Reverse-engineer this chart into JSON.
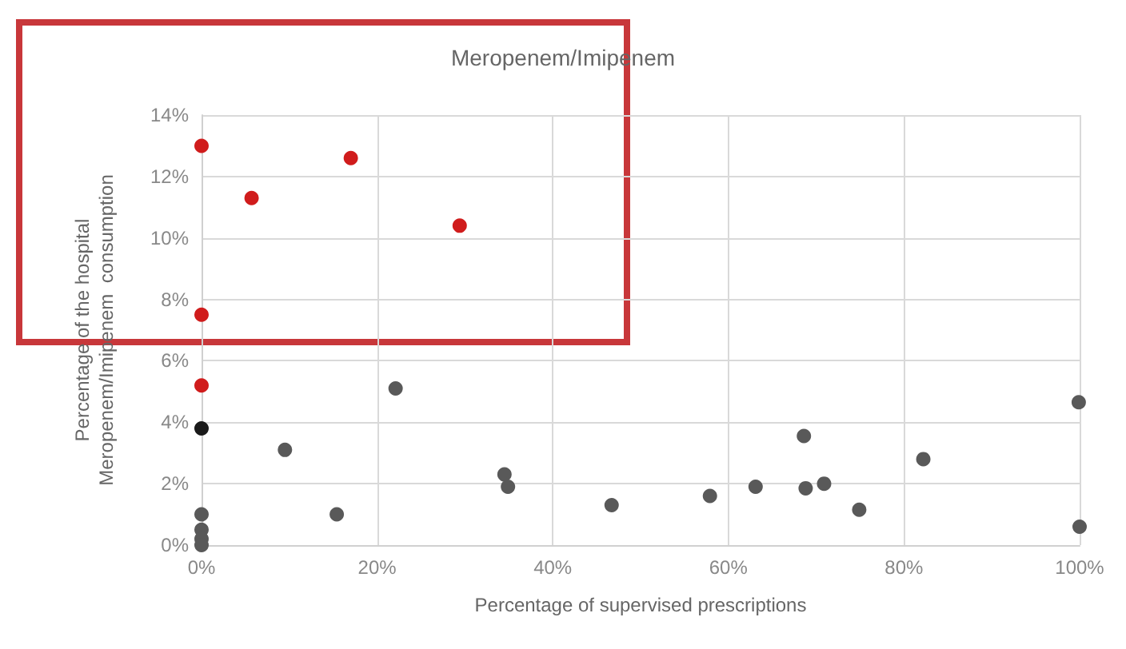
{
  "chart_data": {
    "type": "scatter",
    "title": "Meropenem/Imipenem",
    "xlabel": "Percentage of supervised prescriptions",
    "ylabel": "Percentage of the hospital\nMeropenem/Imipenem  consumption",
    "series": [
      {
        "color": "#d01c1c",
        "x": [
          0,
          0,
          5.7,
          17,
          29.4,
          0
        ],
        "values": [
          13,
          7.5,
          11.3,
          12.6,
          10.4,
          5.2
        ]
      },
      {
        "color": "#1a1a1a",
        "x": [
          0
        ],
        "values": [
          3.8
        ]
      },
      {
        "color": "#595959",
        "x": [
          0,
          0,
          0,
          0,
          9.5,
          15.4,
          22.1,
          34.5,
          34.9,
          46.7,
          57.9,
          63.1,
          68.6,
          68.8,
          70.9,
          74.9,
          82.2,
          99.9,
          100
        ],
        "values": [
          1,
          0.5,
          0.2,
          0,
          3.1,
          1,
          5.1,
          2.3,
          1.9,
          1.3,
          1.6,
          1.9,
          3.55,
          1.85,
          2,
          1.15,
          2.8,
          4.65,
          0.6
        ]
      }
    ],
    "xlim": [
      0,
      100
    ],
    "xticks": [
      {
        "value": 0,
        "label": "0%"
      },
      {
        "value": 20,
        "label": "20%"
      },
      {
        "value": 40,
        "label": "40%"
      },
      {
        "value": 60,
        "label": "60%"
      },
      {
        "value": 80,
        "label": "80%"
      },
      {
        "value": 100,
        "label": "100%"
      }
    ],
    "ylim": [
      0,
      14
    ],
    "yticks": [
      {
        "value": 0,
        "label": "0%"
      },
      {
        "value": 2,
        "label": "2%"
      },
      {
        "value": 4,
        "label": "4%"
      },
      {
        "value": 6,
        "label": "6%"
      },
      {
        "value": 8,
        "label": "8%"
      },
      {
        "value": 10,
        "label": "10%"
      },
      {
        "value": 12,
        "label": "12%"
      },
      {
        "value": 14,
        "label": "14%"
      }
    ],
    "grid": true,
    "marker": "circle"
  }
}
